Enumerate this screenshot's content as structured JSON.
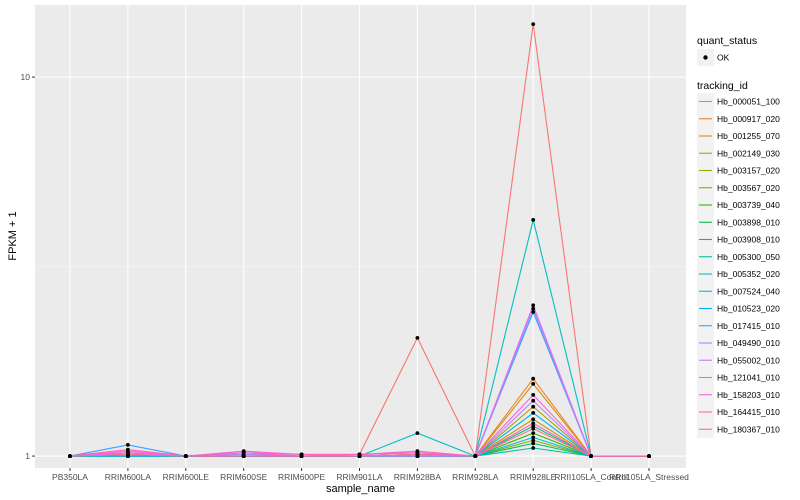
{
  "chart_data": {
    "type": "line",
    "x_label": "sample_name",
    "y_label": "FPKM + 1",
    "y_scale": "log10",
    "y_range": [
      0.93,
      15.5
    ],
    "y_ticks": [
      {
        "value": 1,
        "label": "1"
      },
      {
        "value": 10,
        "label": "10"
      }
    ],
    "categories": [
      "PB350LA",
      "RRIM600LA",
      "RRIM600LE",
      "RRIM600SE",
      "RRIM600PE",
      "RRIM901LA",
      "RRIM928BA",
      "RRIM928LA",
      "RRIM928LE",
      "RRII105LA_Control",
      "RRII105LA_Stressed"
    ],
    "grid": true,
    "legend_point": {
      "title": "quant_status",
      "label": "OK"
    },
    "legend_title": "tracking_id",
    "series": [
      {
        "name": "Hb_000051_100",
        "color": "#F8766D",
        "values": [
          1,
          1.02,
          1,
          1.01,
          1,
          1.01,
          2.05,
          1,
          13.8,
          1,
          1
        ]
      },
      {
        "name": "Hb_000917_020",
        "color": "#EA8331",
        "values": [
          1,
          1.01,
          1,
          1,
          1,
          1,
          1.01,
          1,
          1.6,
          1,
          1
        ]
      },
      {
        "name": "Hb_001255_070",
        "color": "#D89000",
        "values": [
          1,
          1,
          1,
          1,
          1,
          1,
          1,
          1,
          1.55,
          1,
          1
        ]
      },
      {
        "name": "Hb_002149_030",
        "color": "#C09B00",
        "values": [
          1,
          1.01,
          1,
          1,
          1,
          1,
          1.01,
          1,
          1.25,
          1,
          1
        ]
      },
      {
        "name": "Hb_003157_020",
        "color": "#A3A500",
        "values": [
          1,
          1,
          1,
          1,
          1,
          1,
          1,
          1,
          1.35,
          1,
          1
        ]
      },
      {
        "name": "Hb_003567_020",
        "color": "#7CAE00",
        "values": [
          1,
          1,
          1,
          1,
          1,
          1,
          1,
          1,
          1.1,
          1,
          1
        ]
      },
      {
        "name": "Hb_003739_040",
        "color": "#39B600",
        "values": [
          1,
          1.01,
          1,
          1,
          1,
          1,
          1.01,
          1,
          1.15,
          1,
          1
        ]
      },
      {
        "name": "Hb_003898_010",
        "color": "#00BB4E",
        "values": [
          1,
          1,
          1,
          1,
          1,
          1,
          1,
          1,
          1.08,
          1,
          1
        ]
      },
      {
        "name": "Hb_003908_010",
        "color": "#00BF7D",
        "values": [
          1,
          1,
          1,
          1,
          1,
          1,
          1,
          1,
          1.2,
          1,
          1
        ]
      },
      {
        "name": "Hb_005300_050",
        "color": "#00C1A3",
        "values": [
          1,
          1,
          1,
          1,
          1,
          1,
          1,
          1,
          1.05,
          1,
          1
        ]
      },
      {
        "name": "Hb_005352_020",
        "color": "#00BFC4",
        "values": [
          1,
          1.01,
          1,
          1,
          1,
          1,
          1.15,
          1,
          4.2,
          1,
          1
        ]
      },
      {
        "name": "Hb_007524_040",
        "color": "#00BAE0",
        "values": [
          1,
          1,
          1,
          1,
          1,
          1,
          1,
          1,
          1.12,
          1,
          1
        ]
      },
      {
        "name": "Hb_010523_020",
        "color": "#00B0F6",
        "values": [
          1,
          1,
          1,
          1,
          1,
          1,
          1,
          1,
          1.3,
          1,
          1
        ]
      },
      {
        "name": "Hb_017415_010",
        "color": "#35A2FF",
        "values": [
          1,
          1.07,
          1,
          1,
          1,
          1,
          1,
          1,
          2.4,
          1,
          1
        ]
      },
      {
        "name": "Hb_049490_010",
        "color": "#9590FF",
        "values": [
          1,
          1.02,
          1,
          1.01,
          1,
          1,
          1.01,
          1,
          2.45,
          1,
          1
        ]
      },
      {
        "name": "Hb_055002_010",
        "color": "#C77CFF",
        "values": [
          1,
          1.01,
          1,
          1,
          1,
          1,
          1,
          1,
          1.4,
          1,
          1
        ]
      },
      {
        "name": "Hb_121041_010",
        "color": "#E76BF3",
        "values": [
          1,
          1.02,
          1,
          1.02,
          1.01,
          1.01,
          1.02,
          1,
          2.5,
          1,
          1
        ]
      },
      {
        "name": "Hb_158203_010",
        "color": "#FA62DB",
        "values": [
          1,
          1.03,
          1,
          1.02,
          1,
          1.01,
          1.02,
          1,
          1.45,
          1,
          1
        ]
      },
      {
        "name": "Hb_164415_010",
        "color": "#FF62BC",
        "values": [
          1,
          1.04,
          1,
          1.03,
          1.01,
          1.01,
          1.03,
          1,
          1.22,
          1,
          1
        ]
      },
      {
        "name": "Hb_180367_010",
        "color": "#FF6C91",
        "values": [
          1,
          1.01,
          1,
          1,
          1,
          1,
          1.01,
          1,
          1.18,
          1,
          1
        ]
      }
    ]
  }
}
